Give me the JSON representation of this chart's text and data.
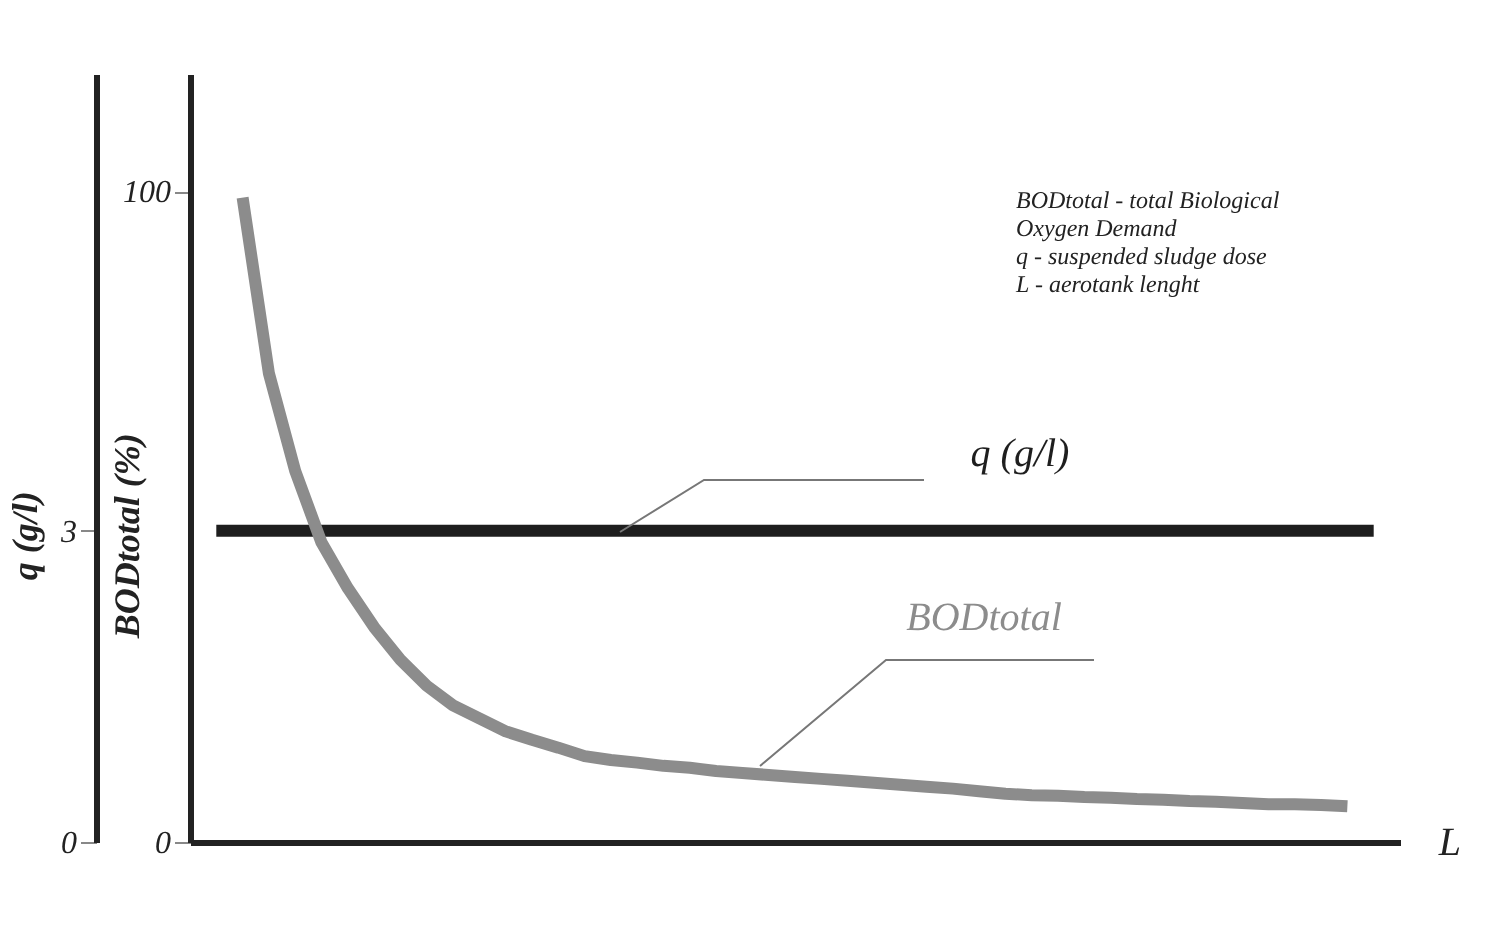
{
  "chart_data": {
    "type": "line",
    "xlabel": "L",
    "ylabel": "q (g/l)",
    "y2label": "BODtotal (%)",
    "annotations": [
      "BODtotal - total Biological",
      "Oxygen Demand",
      "q - suspended sludge dose",
      "L - aerotank lenght"
    ],
    "categories": [
      null,
      null,
      null,
      null,
      null,
      null,
      null,
      null,
      null,
      null,
      null,
      null,
      null,
      null,
      null,
      null,
      null,
      null,
      null,
      null,
      null,
      null,
      null,
      null,
      null,
      null,
      null,
      null,
      null,
      null,
      null,
      null,
      null,
      null,
      null,
      null,
      null,
      null,
      null,
      null,
      null,
      null,
      null,
      null,
      null
    ],
    "series": [
      {
        "name": "q (g/l)",
        "color": "#1e1e1e",
        "axis": "y",
        "values": [
          3,
          3,
          3,
          3,
          3,
          3,
          3,
          3,
          3,
          3,
          3,
          3,
          3,
          3,
          3,
          3,
          3,
          3,
          3,
          3,
          3,
          3,
          3,
          3,
          3,
          3,
          3,
          3,
          3,
          3,
          3,
          3,
          3,
          3,
          3,
          3,
          3,
          3,
          3,
          3,
          3,
          3,
          3,
          3,
          3
        ]
      },
      {
        "name": "BODtotal",
        "color": "#8c8c8c",
        "axis": "y2",
        "values": [
          null,
          99,
          72,
          57,
          46,
          39,
          33,
          28,
          24,
          21,
          19,
          17,
          15.7,
          14.5,
          13.2,
          12.6,
          12.2,
          11.7,
          11.4,
          10.9,
          10.6,
          10.3,
          10,
          9.7,
          9.4,
          9.1,
          8.8,
          8.5,
          8.2,
          7.8,
          7.4,
          7.2,
          7.1,
          6.9,
          6.8,
          6.6,
          6.5,
          6.3,
          6.2,
          6,
          5.8,
          5.8,
          5.7,
          5.5,
          null
        ]
      }
    ],
    "ylim": [
      0,
      7.4
    ],
    "yticks": [
      0,
      3
    ],
    "y2lim": [
      0,
      118
    ],
    "y2ticks": [
      0,
      100
    ],
    "tick_labels": "y"
  }
}
